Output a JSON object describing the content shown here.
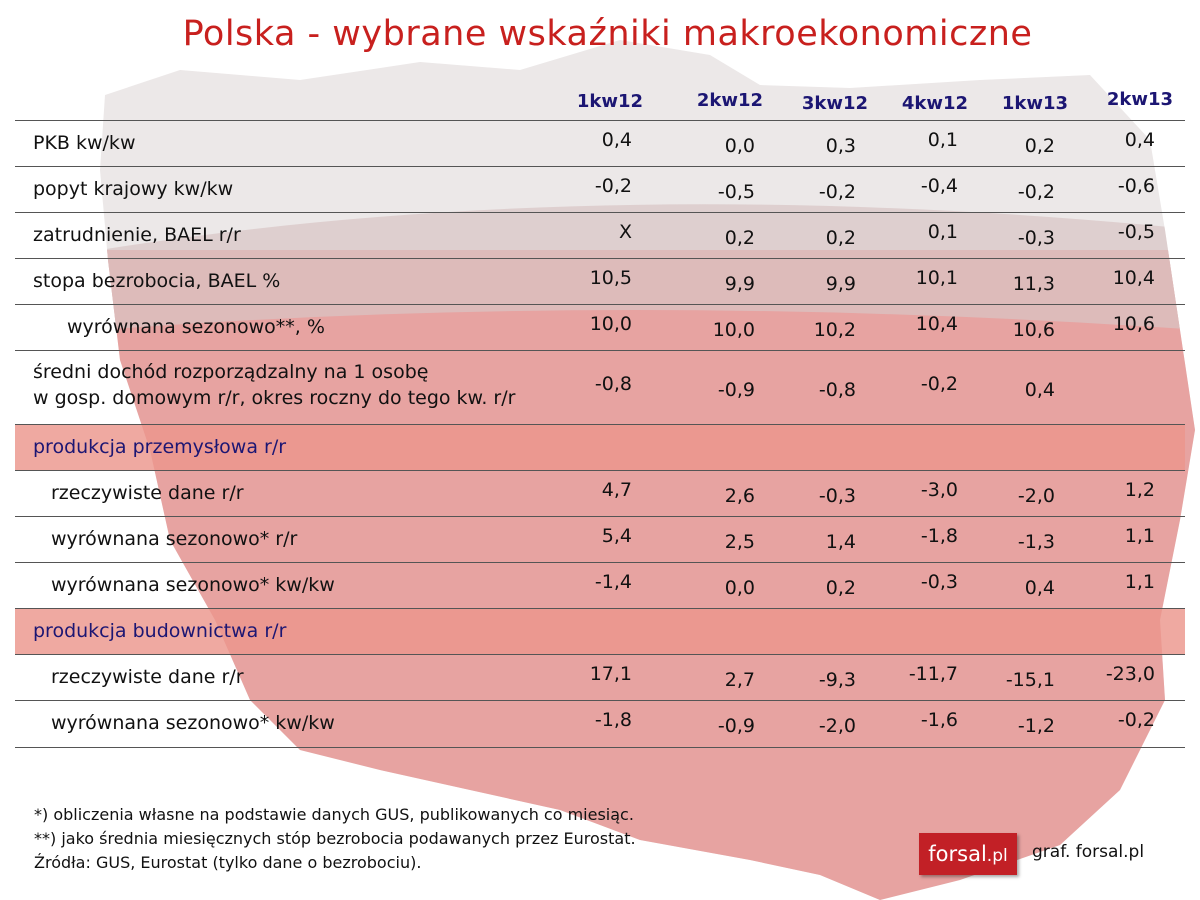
{
  "title": "Polska - wybrane wskaźniki makroekonomiczne",
  "colors": {
    "title": "#c8201e",
    "header": "#1c1673",
    "section_bg": "#ec968c",
    "map_red": "#e28d8a",
    "map_gray": "#e9e4e4",
    "logo_bg": "#c22026"
  },
  "chart_data": {
    "type": "table",
    "columns": [
      "1kw12",
      "2kw12",
      "3kw12",
      "4kw12",
      "1kw13",
      "2kw13"
    ],
    "rows": [
      {
        "label": "PKB kw/kw",
        "values": [
          "0,4",
          "0,0",
          "0,3",
          "0,1",
          "0,2",
          "0,4"
        ]
      },
      {
        "label": "popyt krajowy kw/kw",
        "values": [
          "-0,2",
          "-0,5",
          "-0,2",
          "-0,4",
          "-0,2",
          "-0,6"
        ]
      },
      {
        "label": "zatrudnienie, BAEL r/r",
        "values": [
          "X",
          "0,2",
          "0,2",
          "0,1",
          "-0,3",
          "-0,5"
        ]
      },
      {
        "label": "stopa bezrobocia, BAEL %",
        "values": [
          "10,5",
          "9,9",
          "9,9",
          "10,1",
          "11,3",
          "10,4"
        ]
      },
      {
        "label": "wyrównana sezonowo**, %",
        "values": [
          "10,0",
          "10,0",
          "10,2",
          "10,4",
          "10,6",
          "10,6"
        ]
      },
      {
        "label": "średni dochód rozporządzalny na 1 osobę",
        "label2": "w gosp. domowym r/r, okres roczny do tego kw. r/r",
        "values": [
          "-0,8",
          "-0,9",
          "-0,8",
          "-0,2",
          "0,4",
          ""
        ]
      },
      {
        "label": "produkcja przemysłowa r/r",
        "section": true,
        "values": []
      },
      {
        "label": "rzeczywiste dane r/r",
        "values": [
          "4,7",
          "2,6",
          "-0,3",
          "-3,0",
          "-2,0",
          "1,2"
        ]
      },
      {
        "label": "wyrównana sezonowo* r/r",
        "values": [
          "5,4",
          "2,5",
          "1,4",
          "-1,8",
          "-1,3",
          "1,1"
        ]
      },
      {
        "label": "wyrównana sezonowo* kw/kw",
        "values": [
          "-1,4",
          "0,0",
          "0,2",
          "-0,3",
          "0,4",
          "1,1"
        ]
      },
      {
        "label": "produkcja budownictwa  r/r",
        "section": true,
        "values": []
      },
      {
        "label": "rzeczywiste dane r/r",
        "values": [
          "17,1",
          "2,7",
          "-9,3",
          "-11,7",
          "-15,1",
          "-23,0"
        ]
      },
      {
        "label": "wyrównana sezonowo* kw/kw",
        "values": [
          "-1,8",
          "-0,9",
          "-2,0",
          "-1,6",
          "-1,2",
          "-0,2"
        ]
      }
    ]
  },
  "footnotes": [
    "*) obliczenia własne na podstawie danych GUS, publikowanych co miesiąc.",
    "**) jako średnia miesięcznych stóp bezrobocia podawanych przez Eurostat.",
    "Źródła: GUS, Eurostat (tylko dane o bezrobociu)."
  ],
  "logo_text": {
    "main": "forsal",
    "suffix": ".pl"
  },
  "source": "graf. forsal.pl"
}
